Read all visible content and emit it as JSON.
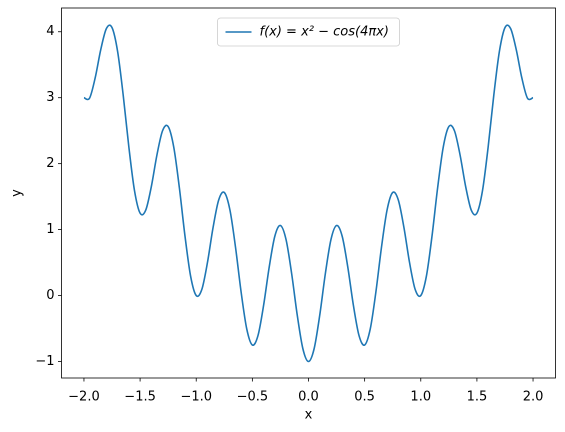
{
  "chart_data": {
    "type": "line",
    "x_label": "x",
    "y_label": "y",
    "x": [
      -2.0,
      -1.95,
      -1.9,
      -1.85,
      -1.8,
      -1.75,
      -1.7,
      -1.65,
      -1.6,
      -1.55,
      -1.5,
      -1.45,
      -1.4,
      -1.35,
      -1.3,
      -1.25,
      -1.2,
      -1.15,
      -1.1,
      -1.05,
      -1.0,
      -0.95,
      -0.9,
      -0.85,
      -0.8,
      -0.75,
      -0.7,
      -0.65,
      -0.6,
      -0.55,
      -0.5,
      -0.45,
      -0.4,
      -0.35,
      -0.3,
      -0.25,
      -0.2,
      -0.15,
      -0.1,
      -0.05,
      0.0,
      0.05,
      0.1,
      0.15,
      0.2,
      0.25,
      0.3,
      0.35,
      0.4,
      0.45,
      0.5,
      0.55,
      0.6,
      0.65,
      0.7,
      0.75,
      0.8,
      0.85,
      0.9,
      0.95,
      1.0,
      1.05,
      1.1,
      1.15,
      1.2,
      1.25,
      1.3,
      1.35,
      1.4,
      1.45,
      1.5,
      1.55,
      1.6,
      1.65,
      1.7,
      1.75,
      1.8,
      1.85,
      1.9,
      1.95,
      2.0
    ],
    "series": [
      {
        "name": "f(x) = x² − cos(4πx)",
        "color": "#1f77b4",
        "values": [
          3,
          2.9935,
          3.301,
          3.7315,
          4.049,
          4.0625,
          3.699,
          3.0315,
          2.251,
          1.5935,
          1.25,
          1.2935,
          1.651,
          2.1315,
          2.499,
          2.5625,
          2.249,
          1.6315,
          0.901,
          0.2935,
          0,
          0.0935,
          0.501,
          1.0315,
          1.449,
          1.5625,
          1.299,
          0.7315,
          0.051,
          -0.5065,
          -0.75,
          -0.6065,
          -0.149,
          0.4315,
          0.899,
          1.0625,
          0.849,
          0.3315,
          -0.299,
          -0.8065,
          -1,
          -0.8065,
          -0.299,
          0.3315,
          0.849,
          1.0625,
          0.899,
          0.4315,
          -0.149,
          -0.6065,
          -0.75,
          -0.5065,
          0.051,
          0.7315,
          1.299,
          1.5625,
          1.449,
          1.0315,
          0.501,
          0.0935,
          0,
          0.2935,
          0.901,
          1.6315,
          2.249,
          2.5625,
          2.499,
          2.1315,
          1.651,
          1.2935,
          1.25,
          1.5935,
          2.251,
          3.0315,
          3.699,
          4.0625,
          4.049,
          3.7315,
          3.301,
          2.9935,
          3
        ]
      }
    ],
    "xlim": [
      -2.2,
      2.2
    ],
    "ylim": [
      -1.25,
      4.36
    ],
    "xticks": [
      {
        "value": -2.0,
        "label": "−2.0"
      },
      {
        "value": -1.5,
        "label": "−1.5"
      },
      {
        "value": -1.0,
        "label": "−1.0"
      },
      {
        "value": -0.5,
        "label": "−0.5"
      },
      {
        "value": 0.0,
        "label": "0.0"
      },
      {
        "value": 0.5,
        "label": "0.5"
      },
      {
        "value": 1.0,
        "label": "1.0"
      },
      {
        "value": 1.5,
        "label": "1.5"
      },
      {
        "value": 2.0,
        "label": "2.0"
      }
    ],
    "yticks": [
      {
        "value": -1,
        "label": "−1"
      },
      0,
      1,
      2,
      3,
      4
    ],
    "grid": false,
    "legend": "upper center"
  }
}
